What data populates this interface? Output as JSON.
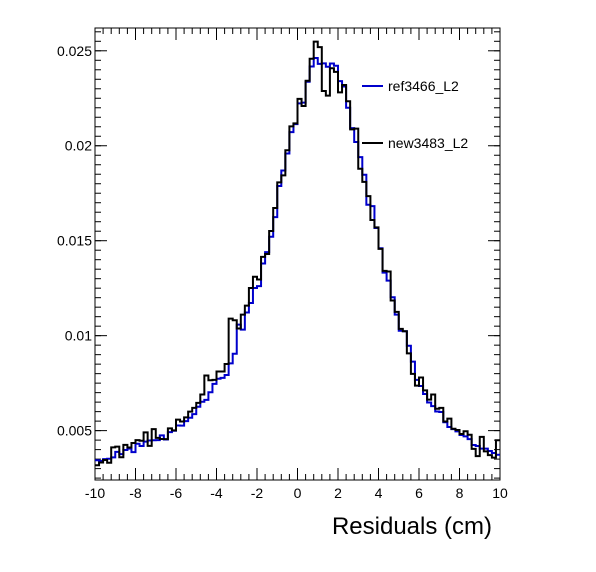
{
  "chart_data": {
    "type": "line",
    "drawstyle": "steps",
    "xlabel": "Residuals (cm)",
    "ylabel": "",
    "xlim": [
      -10,
      10
    ],
    "ylim": [
      0.0024,
      0.0262
    ],
    "x_ticks": [
      -10,
      -8,
      -6,
      -4,
      -2,
      0,
      2,
      4,
      6,
      8,
      10
    ],
    "x_tick_labels": [
      "-10",
      "-8",
      "-6",
      "-4",
      "-2",
      "0",
      "2",
      "4",
      "6",
      "8",
      "10"
    ],
    "y_ticks": [
      0.005,
      0.01,
      0.015,
      0.02,
      0.025
    ],
    "y_tick_labels": [
      "0.005",
      "0.01",
      "0.015",
      "0.02",
      "0.025"
    ],
    "grid": false,
    "legend_position": "top-right",
    "bin_edges_range": [
      -10,
      10
    ],
    "bin_count": 100,
    "series": [
      {
        "name": "ref3466_L2",
        "color": "#0000cc",
        "values": [
          0.00344,
          0.00341,
          0.0035,
          0.00352,
          0.00359,
          0.00388,
          0.00376,
          0.00398,
          0.00405,
          0.00387,
          0.00431,
          0.00419,
          0.00442,
          0.00448,
          0.00449,
          0.0045,
          0.00475,
          0.00453,
          0.00492,
          0.00499,
          0.00527,
          0.00526,
          0.0055,
          0.00568,
          0.00587,
          0.00626,
          0.00652,
          0.00662,
          0.00702,
          0.00746,
          0.00773,
          0.00778,
          0.00793,
          0.00854,
          0.00905,
          0.01058,
          0.01032,
          0.01122,
          0.01172,
          0.01251,
          0.01261,
          0.0138,
          0.0144,
          0.01521,
          0.01624,
          0.01788,
          0.0187,
          0.01959,
          0.02072,
          0.02114,
          0.02223,
          0.02227,
          0.02337,
          0.02417,
          0.02462,
          0.02431,
          0.02434,
          0.02416,
          0.02433,
          0.02421,
          0.0234,
          0.02312,
          0.022,
          0.02093,
          0.0202,
          0.0194,
          0.01847,
          0.01689,
          0.01682,
          0.01567,
          0.0146,
          0.01332,
          0.0129,
          0.01202,
          0.01111,
          0.01026,
          0.01023,
          0.00947,
          0.00863,
          0.00767,
          0.00735,
          0.00693,
          0.00648,
          0.00629,
          0.00601,
          0.00598,
          0.00544,
          0.00519,
          0.00508,
          0.00496,
          0.00477,
          0.0047,
          0.00455,
          0.00424,
          0.00419,
          0.00405,
          0.00405,
          0.00393,
          0.00382,
          0.00373
        ]
      },
      {
        "name": "new3483_L2",
        "color": "#000000",
        "values": [
          0.00318,
          0.00332,
          0.00345,
          0.00331,
          0.00412,
          0.00416,
          0.0036,
          0.00425,
          0.00411,
          0.00435,
          0.0045,
          0.00447,
          0.00491,
          0.0042,
          0.00508,
          0.00462,
          0.00456,
          0.00455,
          0.00512,
          0.00501,
          0.00558,
          0.00548,
          0.0057,
          0.006,
          0.0062,
          0.00646,
          0.0069,
          0.0079,
          0.00765,
          0.00767,
          0.00811,
          0.00811,
          0.00851,
          0.0109,
          0.01081,
          0.01038,
          0.01111,
          0.01158,
          0.01251,
          0.0131,
          0.01296,
          0.01415,
          0.0143,
          0.01551,
          0.01672,
          0.01807,
          0.01844,
          0.01976,
          0.02102,
          0.02118,
          0.02247,
          0.02209,
          0.02342,
          0.02458,
          0.02548,
          0.02519,
          0.02288,
          0.02264,
          0.02408,
          0.02389,
          0.02281,
          0.0232,
          0.02234,
          0.02086,
          0.0209,
          0.01879,
          0.0181,
          0.01735,
          0.01609,
          0.0157,
          0.01457,
          0.01341,
          0.01338,
          0.01185,
          0.01125,
          0.01036,
          0.01023,
          0.00907,
          0.00799,
          0.00737,
          0.0078,
          0.00712,
          0.00663,
          0.0069,
          0.00615,
          0.0062,
          0.00548,
          0.00563,
          0.0051,
          0.00503,
          0.00482,
          0.00497,
          0.00478,
          0.00404,
          0.00366,
          0.00467,
          0.00391,
          0.00371,
          0.00358,
          0.00449
        ]
      }
    ]
  }
}
